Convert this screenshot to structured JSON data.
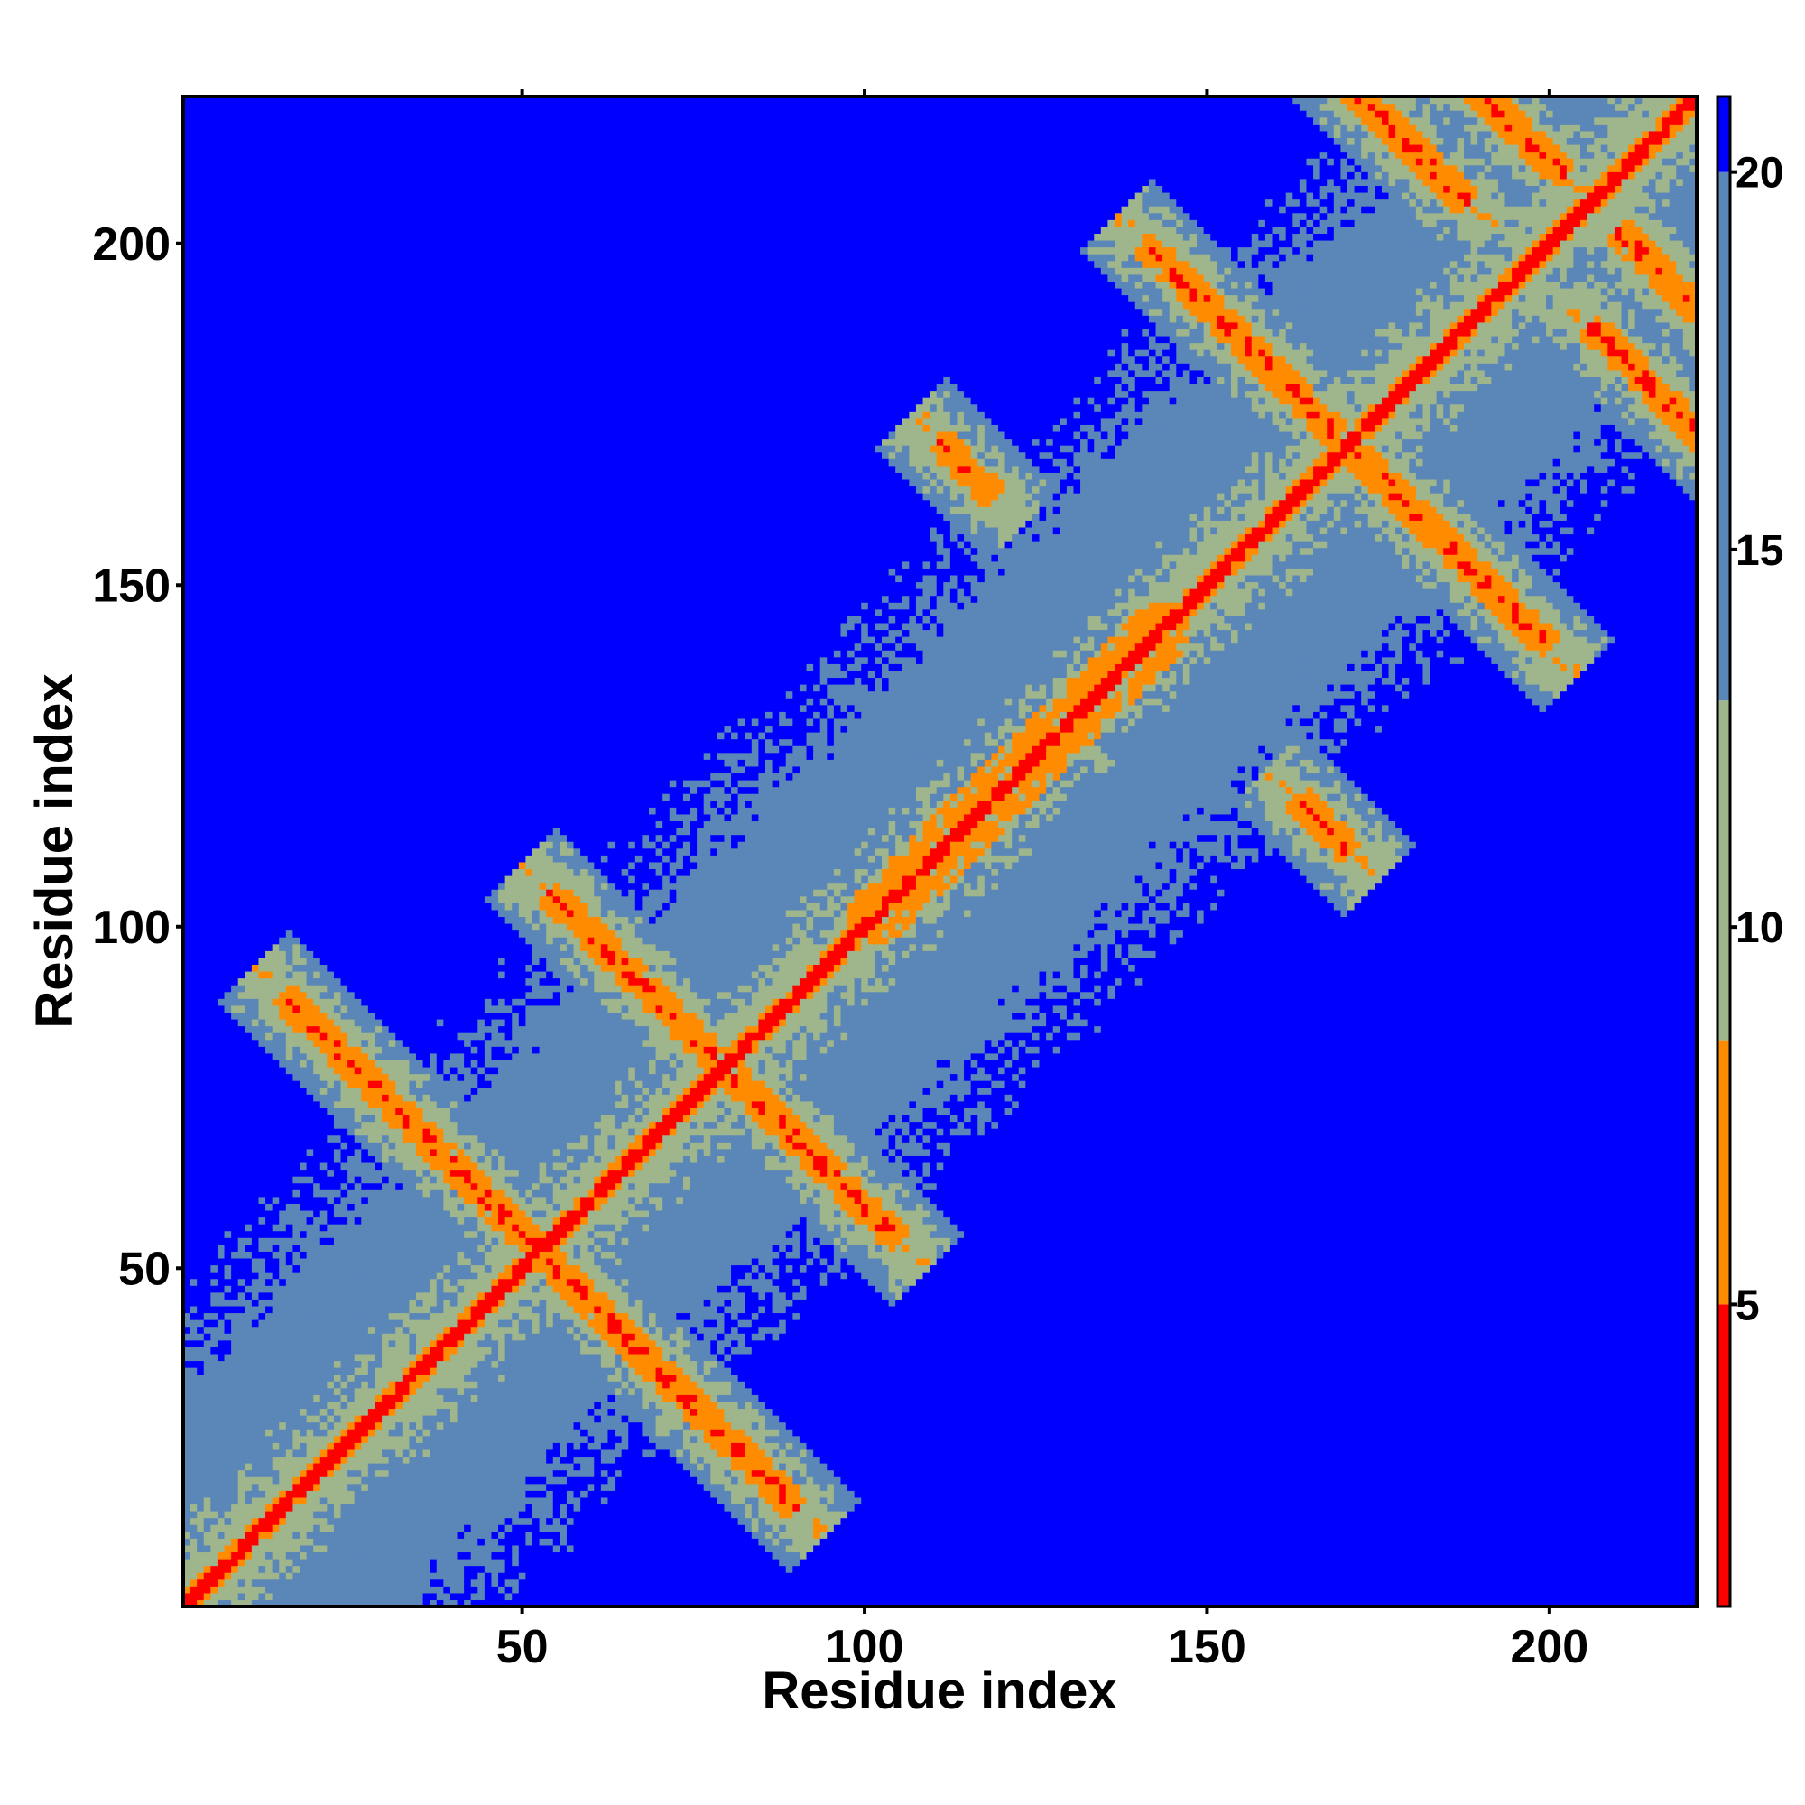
{
  "chart_data": {
    "type": "heatmap",
    "title": "",
    "xlabel": "Residue index",
    "ylabel": "Residue index",
    "n_residues": 221,
    "xlim": [
      1,
      221
    ],
    "ylim": [
      1,
      221
    ],
    "x_ticks": [
      50,
      100,
      150,
      200
    ],
    "y_ticks": [
      50,
      100,
      150,
      200
    ],
    "colorbar": {
      "range": [
        1,
        21
      ],
      "ticks": [
        5,
        10,
        15,
        20
      ],
      "bands": [
        {
          "max": 5,
          "color": "#ff0000"
        },
        {
          "max": 8.5,
          "color": "#ff8c00"
        },
        {
          "max": 13,
          "color": "#9fb58c"
        },
        {
          "max": 20,
          "color": "#5a86b8"
        },
        {
          "max": 21,
          "color": "#0000ff"
        }
      ]
    },
    "structure": {
      "helices": [
        [
          98,
          147
        ]
      ],
      "hairpins_antiparallel": [
        {
          "i": 29,
          "j": 76,
          "center": 52.5,
          "arm": 14
        },
        {
          "i": 46,
          "j": 59,
          "center": 52.5,
          "arm": 9
        },
        {
          "i": 66,
          "j": 93,
          "center": 79.5,
          "arm": 12
        },
        {
          "i": 115,
          "j": 167,
          "center": 141,
          "arm": 4
        },
        {
          "i": 155,
          "j": 186,
          "center": 170.5,
          "arm": 14
        },
        {
          "i": 173,
          "j": 221,
          "center": 197,
          "arm": 15
        },
        {
          "i": 192,
          "j": 220,
          "center": 206,
          "arm": 10
        }
      ]
    }
  }
}
